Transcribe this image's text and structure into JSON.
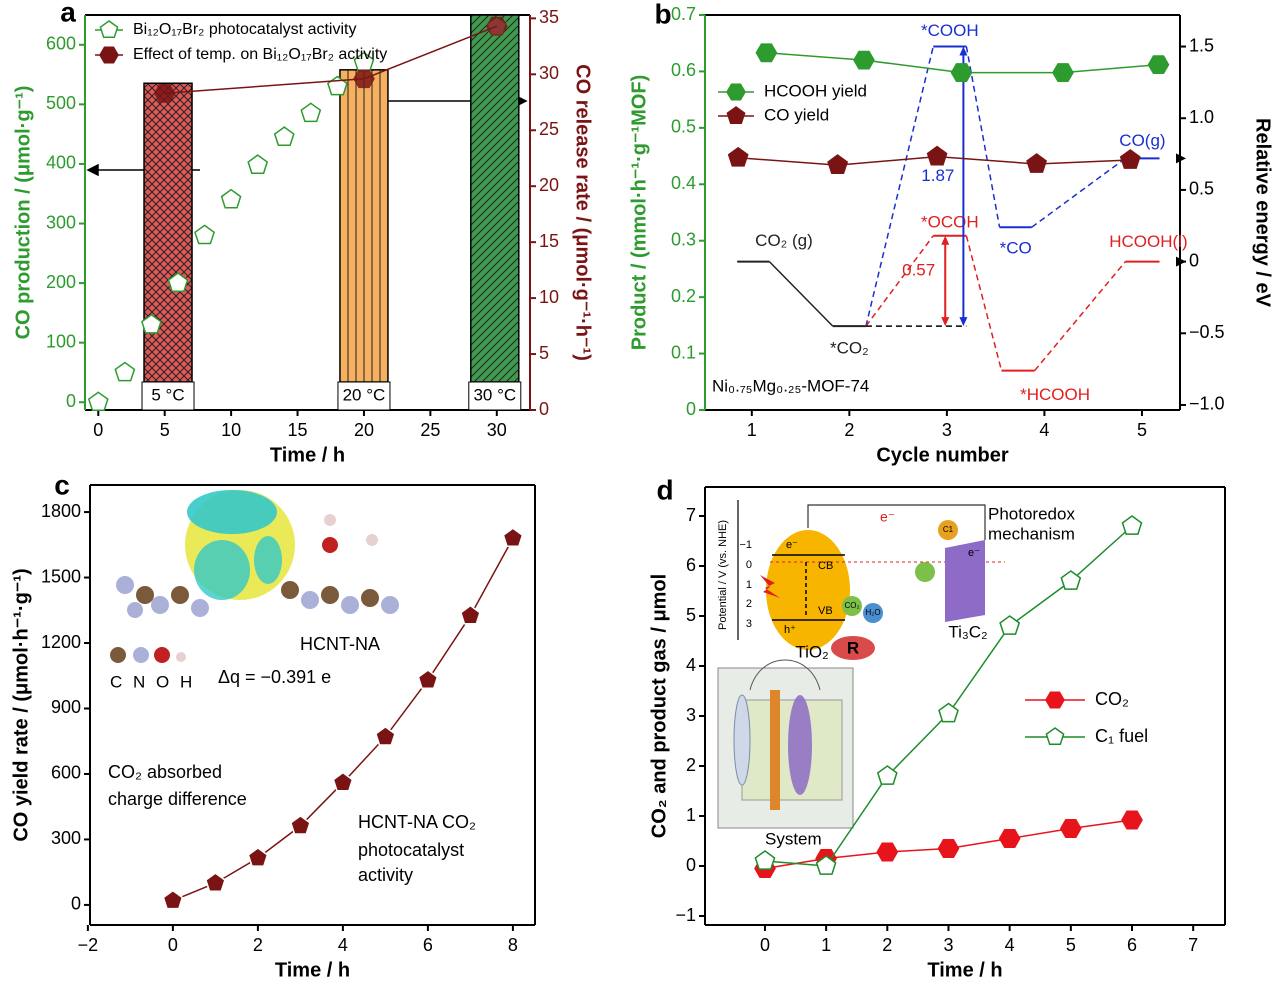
{
  "chart_data": [
    {
      "type": "line",
      "label": "a",
      "xlabel": "Time / h",
      "ylabel": "CO production / (μmol·g⁻¹)",
      "y2label": "CO release rate / (μmol·g⁻¹·h⁻¹)",
      "xlim": [
        -1,
        32.5
      ],
      "xticks": [
        0,
        5,
        10,
        15,
        20,
        25,
        30
      ],
      "ylim": [
        -13,
        650
      ],
      "yticks": [
        0,
        100,
        200,
        300,
        400,
        500,
        600
      ],
      "y2lim": [
        0,
        35.3
      ],
      "y2ticks": [
        0,
        5,
        10,
        15,
        20,
        25,
        30,
        35
      ],
      "ycolor": "#2e9b2e",
      "y2color": "#7a1414",
      "bars": {
        "axis": "y2",
        "categories": [
          "5 °C",
          "20 °C",
          "30 °C"
        ],
        "x": [
          5.25,
          20,
          29.85
        ],
        "values": [
          29.2,
          30.4,
          35.3
        ],
        "colors": [
          "#e05858",
          "#f5b060",
          "#3f9a4f"
        ]
      },
      "series": [
        {
          "name": "Bi₁₂O₁₇Br₂ photocatalyst activity",
          "color": "#2e9b2e",
          "marker": "pentagon",
          "marker_fill": "#ffffff",
          "line": false,
          "x": [
            0,
            2,
            4,
            6,
            8,
            10,
            12,
            14,
            16,
            18,
            20,
            30
          ],
          "values": [
            0,
            50,
            130,
            200,
            280,
            340,
            398,
            445,
            485,
            530,
            570,
            630
          ]
        },
        {
          "name": "Effect of temp. on Bi₁₂O₁₇Br₂ activity",
          "color": "#7a1414",
          "marker": "hexagon",
          "marker_fill": "#7a1414",
          "line": true,
          "axis": "y2",
          "x": [
            5,
            20,
            30
          ],
          "values": [
            28.3,
            29.6,
            34.3
          ]
        }
      ]
    },
    {
      "type": "line",
      "label": "b",
      "xlabel": "Cycle number",
      "ylabel": "Product / (mmol·h⁻¹·g⁻¹MOF)",
      "y2label": "Relative energy / eV",
      "xlim": [
        0.52,
        5.39
      ],
      "xticks": [
        1,
        2,
        3,
        4,
        5
      ],
      "ylim": [
        0,
        0.7
      ],
      "yticks": [
        0,
        0.1,
        0.2,
        0.3,
        0.4,
        0.5,
        0.6,
        0.7
      ],
      "y2lim": [
        -1.035,
        1.72
      ],
      "y2ticks": [
        1.5,
        {
          "value": 1,
          "label": "1.0"
        },
        {
          "value": 0.5,
          "label": "0.5"
        },
        0,
        {
          "value": -0.5,
          "label": "−0.5"
        },
        {
          "value": -1,
          "label": "−1.0"
        }
      ],
      "ycolor": "#2e9b2e",
      "y2color": "#000000",
      "text": "Ni₀.₇₅Mg₀.₂₅-MOF-74",
      "series": [
        {
          "name": "HCOOH yield",
          "color": "#2e9b2e",
          "marker": "hexagon",
          "marker_fill": "#2e9b2e",
          "line": true,
          "x": [
            1.15,
            2.15,
            3.15,
            4.19,
            5.17
          ],
          "values": [
            0.633,
            0.62,
            0.598,
            0.598,
            0.612
          ]
        },
        {
          "name": "CO yield",
          "color": "#7a1414",
          "marker": "pentagon",
          "marker_fill": "#7a1414",
          "line": true,
          "x": [
            0.86,
            1.88,
            2.9,
            3.92,
            4.88
          ],
          "values": [
            0.447,
            0.434,
            0.449,
            0.436,
            0.443
          ]
        }
      ],
      "energy": {
        "pathways": [
          {
            "color": "#222222",
            "levels": [
              {
                "label": "CO₂ (g)",
                "value": 0,
                "x": [
                  0.85,
                  1.18
                ]
              },
              {
                "label": "*CO₂",
                "value": -0.45,
                "x": [
                  1.83,
                  2.17
                ]
              }
            ]
          },
          {
            "color": "#1a2fd0",
            "levels": [
              {
                "label": "*COOH",
                "value": 1.5,
                "x": [
                  2.86,
                  3.2
                ]
              },
              {
                "label": "*CO",
                "value": 0.24,
                "x": [
                  3.54,
                  3.87
                ]
              },
              {
                "label": "CO(g)",
                "value": 0.72,
                "x": [
                  4.83,
                  5.18
                ]
              }
            ]
          },
          {
            "color": "#e02020",
            "levels": [
              {
                "label": "*OCOH",
                "value": 0.18,
                "x": [
                  2.86,
                  3.2
                ]
              },
              {
                "label": "*HCOOH",
                "value": -0.76,
                "x": [
                  3.56,
                  3.9
                ]
              },
              {
                "label": "HCOOH(l)",
                "value": 0,
                "x": [
                  4.83,
                  5.18
                ]
              }
            ]
          }
        ],
        "annotations": [
          "1.87",
          "0.57"
        ]
      }
    },
    {
      "type": "line",
      "label": "c",
      "xlabel": "Time / h",
      "ylabel": "CO yield rate / (μmol·h⁻¹·g⁻¹)",
      "xlim": [
        -1.95,
        8.52
      ],
      "xticks": [
        {
          "value": -2,
          "label": "−2"
        },
        0,
        2,
        4,
        6,
        8
      ],
      "ylim": [
        -92,
        1924
      ],
      "yticks": [
        0,
        300,
        600,
        900,
        1200,
        1500,
        1800
      ],
      "color": "#7a1414",
      "marker": "pentagon",
      "marker_fill": "#7a1414",
      "line": true,
      "x": [
        0,
        1,
        2,
        3,
        4,
        5,
        6,
        7,
        8
      ],
      "values": [
        20,
        100,
        215,
        362,
        560,
        770,
        1030,
        1325,
        1680
      ],
      "texts": [
        "HCNT-NA",
        "C N O H",
        "Δq = −0.391 e",
        "CO₂ absorbed",
        "charge difference",
        "HCNT-NA CO₂",
        "photocatalyst",
        "activity"
      ]
    },
    {
      "type": "line",
      "label": "d",
      "xlabel": "Time / h",
      "ylabel": "CO₂ and product gas / μmol",
      "xlim": [
        -0.98,
        7.52
      ],
      "xticks": [
        0,
        1,
        2,
        3,
        4,
        5,
        6,
        7
      ],
      "ylim": [
        -1.18,
        7.58
      ],
      "yticks": [
        {
          "value": -1,
          "label": "−1"
        },
        0,
        1,
        2,
        3,
        4,
        5,
        6,
        7
      ],
      "series": [
        {
          "name": "CO₂",
          "color": "#e8141b",
          "marker": "hexagon",
          "marker_fill": "#e8141b",
          "line": true,
          "x": [
            0,
            1,
            2,
            3,
            4,
            5,
            6
          ],
          "values": [
            -0.05,
            0.15,
            0.28,
            0.35,
            0.55,
            0.75,
            0.92
          ]
        },
        {
          "name": "C₁ fuel",
          "color": "#1e8c2a",
          "marker": "pentagon",
          "marker_fill": "#ffffff",
          "line": true,
          "x": [
            0,
            1,
            2,
            3,
            4,
            5,
            6
          ],
          "values": [
            0.1,
            0,
            1.8,
            3.05,
            4.8,
            5.7,
            6.8
          ]
        }
      ],
      "texts": [
        "Photoredox",
        "mechanism",
        "e⁻",
        "Potential / V (vs. NHE)",
        "−1",
        "0",
        "1",
        "2",
        "3",
        "CB",
        "VB",
        "e⁻",
        "h⁺",
        "CO₂",
        "H₂O",
        "C1",
        "e⁻",
        "TiO₂",
        "Ti₃C₂",
        "R",
        "System"
      ]
    }
  ]
}
